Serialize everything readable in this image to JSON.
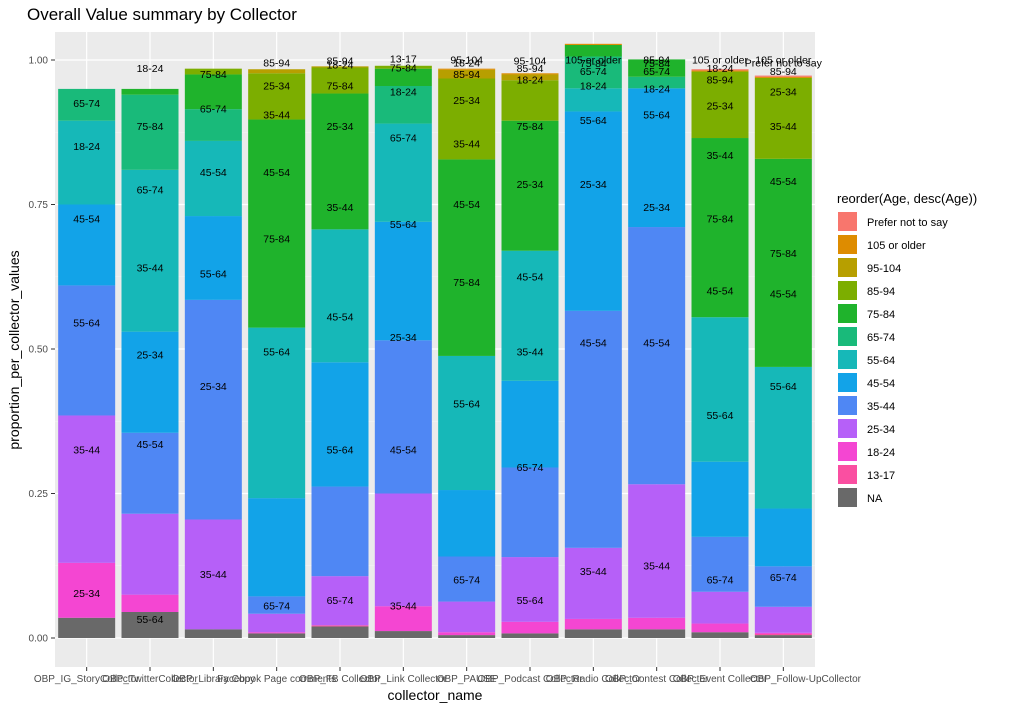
{
  "chart_data": {
    "type": "bar",
    "stacked": true,
    "normalized": true,
    "title": "Overall Value summary by Collector",
    "xlabel": "collector_name",
    "ylabel": "proportion_per_collector_values",
    "ylim": [
      0,
      1
    ],
    "yticks": [
      0,
      0.25,
      0.5,
      0.75,
      1
    ],
    "ytick_labels": [
      "0.00",
      "0.25",
      "0.50",
      "0.75",
      "1.00"
    ],
    "categories": [
      "OBP_IG_StoryCollector",
      "OBP_Twitter_Collector",
      "OBP_Library_Collector",
      "Facebook Page comments",
      "OBP_FB_Collector",
      "OBP_Link_Collector",
      "OBP_MuSE_Collector",
      "OBP_Podcast_Collector",
      "OBP_Radio_Collector",
      "OBP_Contest_Collector",
      "OBP_Event_Collector",
      "OBP_Follow-UpCollector"
    ],
    "xtick_labels": [
      "OBP_IG_StoryCollector",
      "OBP_TwitterCollector",
      "OBP_Library Copy",
      "Facebook Page comments",
      "OBP_FB Collector",
      "OBP_Link Collector",
      "OBP_PAUSE",
      "OBP_Podcast Collector",
      "OBP_Radio Collector",
      "OBP_Contest Collector",
      "OBP_Event Collector",
      "OBP_Follow-UpCollector"
    ],
    "legend": {
      "title": "reorder(Age, desc(Age))",
      "position": "right",
      "entries": [
        "Prefer not to say",
        "105 or older",
        "95-104",
        "85-94",
        "75-84",
        "65-74",
        "55-64",
        "45-54",
        "35-44",
        "25-34",
        "18-24",
        "13-17",
        "NA"
      ]
    },
    "colors": {
      "Prefer not to say": "#F8766D",
      "105 or older": "#DE8C00",
      "95-104": "#B79F00",
      "85-94": "#7CAE00",
      "75-84": "#1FB32C",
      "65-74": "#19BA7A",
      "55-64": "#16B8B8",
      "45-54": "#12A3E8",
      "35-44": "#4F87F4",
      "25-34": "#B660F8",
      "18-24": "#F446D2",
      "13-17": "#FA4FA1",
      "NA": "#696969"
    },
    "series": [
      {
        "name": "NA",
        "values": [
          0.035,
          0.045,
          0.015,
          0.008,
          0.02,
          0.012,
          0.005,
          0.008,
          0.015,
          0.015,
          0.01,
          0.005
        ]
      },
      {
        "name": "13-17",
        "values": [
          0.0,
          0.0,
          0.0,
          0.0,
          0.002,
          0.0,
          0.0,
          0.0,
          0.0,
          0.0,
          0.0,
          0.002
        ]
      },
      {
        "name": "18-24",
        "values": [
          0.095,
          0.03,
          0.0,
          0.002,
          0.0,
          0.043,
          0.005,
          0.02,
          0.018,
          0.02,
          0.015,
          0.002
        ]
      },
      {
        "name": "25-34",
        "values": [
          0.255,
          0.14,
          0.19,
          0.032,
          0.085,
          0.195,
          0.053,
          0.112,
          0.123,
          0.231,
          0.055,
          0.045
        ]
      },
      {
        "name": "35-44",
        "values": [
          0.225,
          0.14,
          0.38,
          0.03,
          0.155,
          0.265,
          0.078,
          0.155,
          0.41,
          0.445,
          0.095,
          0.07
        ]
      },
      {
        "name": "45-54",
        "values": [
          0.14,
          0.175,
          0.145,
          0.17,
          0.215,
          0.205,
          0.115,
          0.15,
          0.345,
          0.24,
          0.13,
          0.1
        ]
      },
      {
        "name": "55-64",
        "values": [
          0.145,
          0.28,
          0.13,
          0.295,
          0.23,
          0.17,
          0.232,
          0.225,
          0.04,
          0.0,
          0.25,
          0.245
        ]
      },
      {
        "name": "65-74",
        "values": [
          0.055,
          0.13,
          0.055,
          0.0,
          0.0,
          0.065,
          0.0,
          0.0,
          0.055,
          0.02,
          0.0,
          0.0
        ]
      },
      {
        "name": "75-84",
        "values": [
          0.0,
          0.01,
          0.06,
          0.36,
          0.235,
          0.03,
          0.34,
          0.225,
          0.02,
          0.03,
          0.31,
          0.36
        ]
      },
      {
        "name": "85-94",
        "values": [
          0.0,
          0.0,
          0.01,
          0.08,
          0.045,
          0.005,
          0.14,
          0.07,
          0.0,
          0.0,
          0.115,
          0.14
        ]
      },
      {
        "name": "95-104",
        "values": [
          0.0,
          0.0,
          0.0,
          0.007,
          0.002,
          0.0,
          0.015,
          0.01,
          0.0,
          0.0,
          0.0,
          0.0
        ]
      },
      {
        "name": "105 or older",
        "values": [
          0.0,
          0.0,
          0.0,
          0.0,
          0.0,
          0.0,
          0.002,
          0.002,
          0.002,
          0.0,
          0.002,
          0.002
        ]
      },
      {
        "name": "Prefer not to say",
        "values": [
          0.0,
          0.0,
          0.0,
          0.0,
          0.0,
          0.0,
          0.0,
          0.0,
          0.0,
          0.0,
          0.002,
          0.002
        ]
      }
    ],
    "bar_labels": [
      [
        [
          "25-34",
          0.077
        ],
        [
          "35-44",
          0.325
        ],
        [
          "55-64",
          0.545
        ],
        [
          "45-54",
          0.725
        ],
        [
          "18-24",
          0.85
        ],
        [
          "65-74",
          0.925
        ]
      ],
      [
        [
          "55-64",
          0.032
        ],
        [
          "45-54",
          0.335
        ],
        [
          "25-34",
          0.49
        ],
        [
          "35-44",
          0.64
        ],
        [
          "65-74",
          0.775
        ],
        [
          "75-84",
          0.885
        ],
        [
          "18-24",
          0.985
        ]
      ],
      [
        [
          "35-44",
          0.11
        ],
        [
          "25-34",
          0.435
        ],
        [
          "55-64",
          0.63
        ],
        [
          "45-54",
          0.805
        ],
        [
          "65-74",
          0.915
        ],
        [
          "75-84",
          0.975
        ]
      ],
      [
        [
          "65-74",
          0.055
        ],
        [
          "55-64",
          0.495
        ],
        [
          "75-84",
          0.69
        ],
        [
          "45-54",
          0.805
        ],
        [
          "35-44",
          0.905
        ],
        [
          "25-34",
          0.955
        ],
        [
          "85-94",
          0.995
        ]
      ],
      [
        [
          "65-74",
          0.065
        ],
        [
          "55-64",
          0.325
        ],
        [
          "45-54",
          0.555
        ],
        [
          "35-44",
          0.745
        ],
        [
          "25-34",
          0.885
        ],
        [
          "75-84",
          0.955
        ],
        [
          "18-24",
          0.991
        ],
        [
          "85-94",
          0.998
        ]
      ],
      [
        [
          "35-44",
          0.055
        ],
        [
          "45-54",
          0.325
        ],
        [
          "25-34",
          0.52
        ],
        [
          "55-64",
          0.715
        ],
        [
          "65-74",
          0.865
        ],
        [
          "18-24",
          0.945
        ],
        [
          "75-84",
          0.986
        ],
        [
          "13-17",
          1.002
        ]
      ],
      [
        [
          "65-74",
          0.1
        ],
        [
          "55-64",
          0.405
        ],
        [
          "75-84",
          0.615
        ],
        [
          "45-54",
          0.75
        ],
        [
          "35-44",
          0.855
        ],
        [
          "25-34",
          0.93
        ],
        [
          "85-94",
          0.975
        ],
        [
          "18-24",
          0.995
        ],
        [
          "95-104",
          1.0
        ]
      ],
      [
        [
          "55-64",
          0.065
        ],
        [
          "65-74",
          0.295
        ],
        [
          "35-44",
          0.495
        ],
        [
          "45-54",
          0.625
        ],
        [
          "25-34",
          0.785
        ],
        [
          "75-84",
          0.885
        ],
        [
          "18-24",
          0.965
        ],
        [
          "85-94",
          0.985
        ],
        [
          "95-104",
          0.998
        ]
      ],
      [
        [
          "35-44",
          0.115
        ],
        [
          "45-54",
          0.51
        ],
        [
          "25-34",
          0.785
        ],
        [
          "55-64",
          0.895
        ],
        [
          "18-24",
          0.955
        ],
        [
          "65-74",
          0.98
        ],
        [
          "75-84",
          0.994
        ],
        [
          "105 or older",
          1.0
        ]
      ],
      [
        [
          "35-44",
          0.125
        ],
        [
          "45-54",
          0.51
        ],
        [
          "25-34",
          0.745
        ],
        [
          "55-64",
          0.905
        ],
        [
          "18-24",
          0.95
        ],
        [
          "65-74",
          0.98
        ],
        [
          "75-84",
          0.994
        ],
        [
          "85-94",
          1.0
        ]
      ],
      [
        [
          "65-74",
          0.1
        ],
        [
          "55-64",
          0.385
        ],
        [
          "45-54",
          0.6
        ],
        [
          "75-84",
          0.725
        ],
        [
          "35-44",
          0.835
        ],
        [
          "25-34",
          0.92
        ],
        [
          "85-94",
          0.965
        ],
        [
          "18-24",
          0.985
        ],
        [
          "105 or older",
          1.0
        ]
      ],
      [
        [
          "65-74",
          0.105
        ],
        [
          "55-64",
          0.435
        ],
        [
          "45-54",
          0.595
        ],
        [
          "75-84",
          0.665
        ],
        [
          "45-54",
          0.79
        ],
        [
          "35-44",
          0.885
        ],
        [
          "25-34",
          0.945
        ],
        [
          "85-94",
          0.98
        ],
        [
          "Prefer not to say",
          0.995
        ],
        [
          "105 or older",
          1.0
        ]
      ]
    ]
  }
}
